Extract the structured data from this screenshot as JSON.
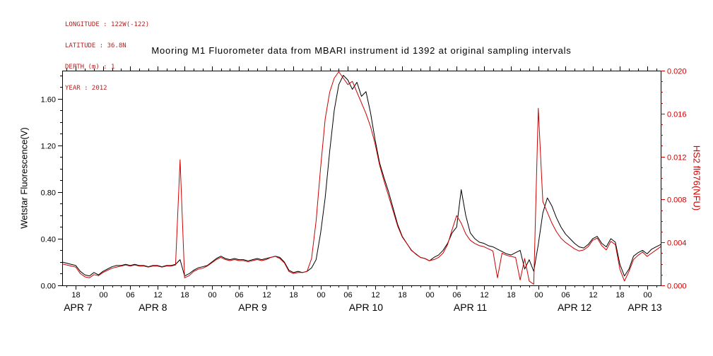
{
  "header": {
    "lines": [
      "LONGITUDE : 122W(-122)",
      "LATITUDE : 36.8N",
      "DEPTH (m) : 1",
      "YEAR : 2012"
    ]
  },
  "chart_data": {
    "type": "line",
    "title": "Mooring M1 Fluorometer data from MBARI instrument id 1392 at original sampling intervals",
    "grid": false,
    "legend": "none",
    "x_axis": {
      "unit": "hours since 2012-04-07 00:00",
      "range": [
        15,
        147
      ],
      "minor_tick_hours": 2,
      "major_ticks": [
        {
          "t": 18,
          "label": "18"
        },
        {
          "t": 24,
          "label": "00"
        },
        {
          "t": 30,
          "label": "06"
        },
        {
          "t": 36,
          "label": "12"
        },
        {
          "t": 42,
          "label": "18"
        },
        {
          "t": 48,
          "label": "00"
        },
        {
          "t": 54,
          "label": "06"
        },
        {
          "t": 60,
          "label": "12"
        },
        {
          "t": 66,
          "label": "18"
        },
        {
          "t": 72,
          "label": "00"
        },
        {
          "t": 78,
          "label": "06"
        },
        {
          "t": 84,
          "label": "12"
        },
        {
          "t": 90,
          "label": "18"
        },
        {
          "t": 96,
          "label": "00"
        },
        {
          "t": 102,
          "label": "06"
        },
        {
          "t": 108,
          "label": "12"
        },
        {
          "t": 114,
          "label": "18"
        },
        {
          "t": 120,
          "label": "00"
        },
        {
          "t": 126,
          "label": "06"
        },
        {
          "t": 132,
          "label": "12"
        },
        {
          "t": 138,
          "label": "18"
        },
        {
          "t": 144,
          "label": "00"
        }
      ],
      "date_labels": [
        {
          "t": 18.5,
          "label": "APR 7"
        },
        {
          "t": 35,
          "label": "APR 8"
        },
        {
          "t": 57,
          "label": "APR 9"
        },
        {
          "t": 82,
          "label": "APR 10"
        },
        {
          "t": 105,
          "label": "APR 11"
        },
        {
          "t": 128,
          "label": "APR 12"
        },
        {
          "t": 143.5,
          "label": "APR 13"
        }
      ]
    },
    "y_left": {
      "label": "Wetstar Fluorescence(V)",
      "range": [
        0,
        1.84
      ],
      "minor_tick": 0.1,
      "ticks": [
        {
          "v": 0.0,
          "label": "0.00"
        },
        {
          "v": 0.4,
          "label": "0.40"
        },
        {
          "v": 0.8,
          "label": "0.80"
        },
        {
          "v": 1.2,
          "label": "1.20"
        },
        {
          "v": 1.6,
          "label": "1.60"
        }
      ],
      "color": "#000000"
    },
    "y_right": {
      "label": "HS2 fl676(NFU)",
      "range": [
        0,
        0.02
      ],
      "minor_tick": 0.001,
      "ticks": [
        {
          "v": 0.0,
          "label": "0.000"
        },
        {
          "v": 0.004,
          "label": "0.004"
        },
        {
          "v": 0.008,
          "label": "0.008"
        },
        {
          "v": 0.012,
          "label": "0.012"
        },
        {
          "v": 0.016,
          "label": "0.016"
        },
        {
          "v": 0.02,
          "label": "0.020"
        }
      ],
      "color": "#cc0000"
    },
    "series": [
      {
        "name": "Wetstar Fluorescence",
        "axis": "left",
        "color": "#000000",
        "t_start": 15,
        "t_step": 1,
        "values": [
          0.2,
          0.19,
          0.18,
          0.17,
          0.12,
          0.09,
          0.08,
          0.11,
          0.09,
          0.12,
          0.14,
          0.16,
          0.17,
          0.17,
          0.18,
          0.17,
          0.18,
          0.17,
          0.17,
          0.16,
          0.17,
          0.17,
          0.16,
          0.17,
          0.17,
          0.18,
          0.22,
          0.08,
          0.1,
          0.13,
          0.15,
          0.16,
          0.17,
          0.2,
          0.23,
          0.25,
          0.23,
          0.22,
          0.23,
          0.22,
          0.22,
          0.21,
          0.22,
          0.23,
          0.22,
          0.23,
          0.24,
          0.25,
          0.24,
          0.2,
          0.13,
          0.11,
          0.12,
          0.11,
          0.12,
          0.15,
          0.22,
          0.45,
          0.75,
          1.15,
          1.5,
          1.72,
          1.8,
          1.76,
          1.68,
          1.74,
          1.62,
          1.66,
          1.48,
          1.25,
          1.05,
          0.92,
          0.8,
          0.66,
          0.52,
          0.42,
          0.36,
          0.3,
          0.27,
          0.24,
          0.23,
          0.21,
          0.24,
          0.26,
          0.3,
          0.36,
          0.45,
          0.5,
          0.82,
          0.6,
          0.45,
          0.4,
          0.37,
          0.36,
          0.34,
          0.33,
          0.31,
          0.29,
          0.27,
          0.26,
          0.28,
          0.3,
          0.14,
          0.22,
          0.12,
          0.35,
          0.62,
          0.75,
          0.68,
          0.58,
          0.5,
          0.44,
          0.4,
          0.36,
          0.33,
          0.32,
          0.35,
          0.4,
          0.42,
          0.36,
          0.33,
          0.4,
          0.37,
          0.18,
          0.08,
          0.14,
          0.25,
          0.28,
          0.3,
          0.27,
          0.31,
          0.33,
          0.35
        ]
      },
      {
        "name": "HS2 fl676",
        "axis": "right",
        "color": "#cc0000",
        "t_start": 15,
        "t_step": 1,
        "values": [
          0.002,
          0.0019,
          0.0018,
          0.0017,
          0.0011,
          0.0008,
          0.0007,
          0.001,
          0.0009,
          0.0012,
          0.0014,
          0.0016,
          0.0017,
          0.0018,
          0.0019,
          0.0018,
          0.0019,
          0.0018,
          0.0018,
          0.0017,
          0.0018,
          0.0018,
          0.0017,
          0.0018,
          0.0018,
          0.0019,
          0.0117,
          0.0007,
          0.0009,
          0.0013,
          0.0015,
          0.0016,
          0.0018,
          0.0021,
          0.0024,
          0.0026,
          0.0024,
          0.0023,
          0.0024,
          0.0023,
          0.0023,
          0.0022,
          0.0023,
          0.0024,
          0.0023,
          0.0024,
          0.0026,
          0.0027,
          0.0025,
          0.0021,
          0.0013,
          0.0011,
          0.0012,
          0.0012,
          0.0013,
          0.0025,
          0.006,
          0.011,
          0.0155,
          0.018,
          0.0193,
          0.0199,
          0.0193,
          0.0187,
          0.019,
          0.018,
          0.017,
          0.016,
          0.0148,
          0.0132,
          0.0112,
          0.0097,
          0.0083,
          0.0069,
          0.0055,
          0.0045,
          0.0039,
          0.0033,
          0.0029,
          0.0026,
          0.0025,
          0.0023,
          0.0024,
          0.0026,
          0.003,
          0.0038,
          0.0052,
          0.0065,
          0.0058,
          0.0048,
          0.0042,
          0.0039,
          0.0037,
          0.0036,
          0.0034,
          0.0032,
          0.0007,
          0.003,
          0.0028,
          0.0027,
          0.0026,
          0.0005,
          0.0025,
          0.0004,
          0.0001,
          0.0165,
          0.0078,
          0.0068,
          0.0058,
          0.005,
          0.0044,
          0.004,
          0.0037,
          0.0034,
          0.0032,
          0.0033,
          0.0036,
          0.0042,
          0.0044,
          0.0037,
          0.0033,
          0.0041,
          0.0038,
          0.0015,
          0.0004,
          0.0013,
          0.0024,
          0.0028,
          0.0031,
          0.0027,
          0.003,
          0.0033,
          0.0036
        ]
      }
    ]
  }
}
